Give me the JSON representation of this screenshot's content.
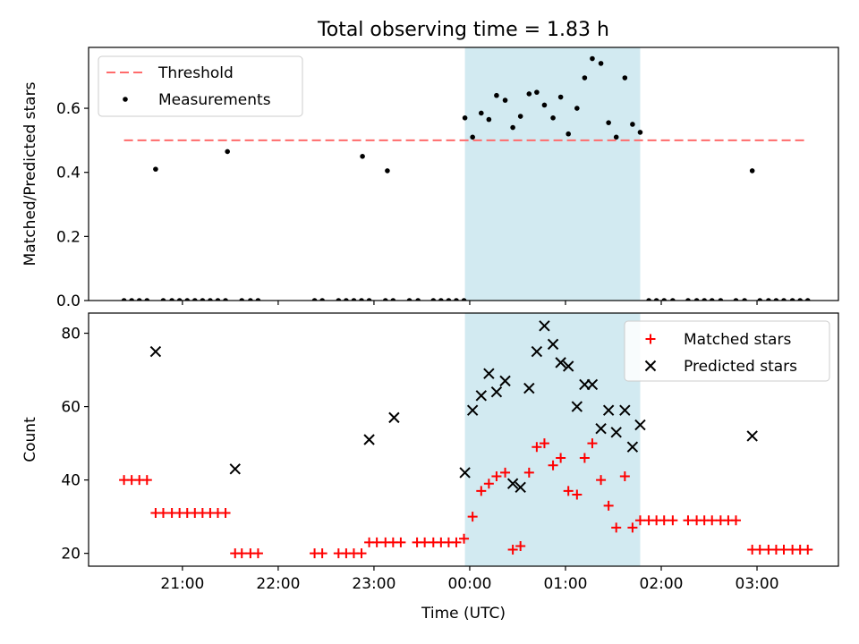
{
  "title": "Total observing time = 1.83 h",
  "colors": {
    "threshold": "#ff6b6b",
    "measure": "#000000",
    "matched": "#ff0000",
    "predicted": "#000000",
    "band": "#add8e6"
  },
  "chart_data": [
    {
      "type": "scatter",
      "panel": "top",
      "ylabel": "Matched/Predicted stars",
      "ylim": [
        0,
        0.79
      ],
      "yticks": [
        "0.0",
        "0.2",
        "0.4",
        "0.6"
      ],
      "yticks_values": [
        0,
        0.2,
        0.4,
        0.6
      ],
      "xlim_hours": [
        20.02,
        27.85
      ],
      "shaded_interval_hours": [
        23.95,
        25.78
      ],
      "legend": {
        "placement": "upper left",
        "entries": [
          "Threshold",
          "Measurements"
        ]
      },
      "threshold": {
        "name": "Threshold",
        "value": 0.5,
        "x_range_hours": [
          20.39,
          27.53
        ]
      },
      "series": [
        {
          "name": "Measurements",
          "points": [
            [
              20.39,
              0
            ],
            [
              20.47,
              0
            ],
            [
              20.55,
              0
            ],
            [
              20.63,
              0
            ],
            [
              20.72,
              0.41
            ],
            [
              20.8,
              0
            ],
            [
              20.89,
              0
            ],
            [
              20.97,
              0
            ],
            [
              21.05,
              0
            ],
            [
              21.13,
              0
            ],
            [
              21.21,
              0
            ],
            [
              21.29,
              0
            ],
            [
              21.37,
              0
            ],
            [
              21.45,
              0
            ],
            [
              21.47,
              0.465
            ],
            [
              21.62,
              0
            ],
            [
              21.71,
              0
            ],
            [
              21.79,
              0
            ],
            [
              22.38,
              0
            ],
            [
              22.46,
              0
            ],
            [
              22.63,
              0
            ],
            [
              22.71,
              0
            ],
            [
              22.79,
              0
            ],
            [
              22.87,
              0
            ],
            [
              22.95,
              0
            ],
            [
              22.88,
              0.45
            ],
            [
              23.12,
              0
            ],
            [
              23.2,
              0
            ],
            [
              23.14,
              0.405
            ],
            [
              23.37,
              0
            ],
            [
              23.46,
              0
            ],
            [
              23.62,
              0
            ],
            [
              23.7,
              0
            ],
            [
              23.78,
              0
            ],
            [
              23.86,
              0
            ],
            [
              23.94,
              0
            ],
            [
              23.95,
              0.57
            ],
            [
              24.03,
              0.51
            ],
            [
              24.12,
              0.585
            ],
            [
              24.2,
              0.565
            ],
            [
              24.28,
              0.64
            ],
            [
              24.37,
              0.625
            ],
            [
              24.45,
              0.54
            ],
            [
              24.53,
              0.575
            ],
            [
              24.62,
              0.645
            ],
            [
              24.7,
              0.65
            ],
            [
              24.78,
              0.61
            ],
            [
              24.87,
              0.57
            ],
            [
              24.95,
              0.635
            ],
            [
              25.03,
              0.52
            ],
            [
              25.12,
              0.6
            ],
            [
              25.2,
              0.695
            ],
            [
              25.28,
              0.755
            ],
            [
              25.37,
              0.74
            ],
            [
              25.45,
              0.555
            ],
            [
              25.53,
              0.51
            ],
            [
              25.62,
              0.695
            ],
            [
              25.7,
              0.55
            ],
            [
              25.78,
              0.525
            ],
            [
              25.87,
              0
            ],
            [
              25.95,
              0
            ],
            [
              26.03,
              0
            ],
            [
              26.12,
              0
            ],
            [
              26.28,
              0
            ],
            [
              26.37,
              0
            ],
            [
              26.45,
              0
            ],
            [
              26.53,
              0
            ],
            [
              26.62,
              0
            ],
            [
              26.78,
              0
            ],
            [
              26.87,
              0
            ],
            [
              27.03,
              0
            ],
            [
              26.95,
              0.405
            ],
            [
              27.12,
              0
            ],
            [
              27.2,
              0
            ],
            [
              27.28,
              0
            ],
            [
              27.37,
              0
            ],
            [
              27.45,
              0
            ],
            [
              27.53,
              0
            ]
          ]
        }
      ]
    },
    {
      "type": "scatter",
      "panel": "bottom",
      "xlabel": "Time (UTC)",
      "ylabel": "Count",
      "ylim": [
        16.5,
        85.5
      ],
      "yticks": [
        "20",
        "40",
        "60",
        "80"
      ],
      "yticks_values": [
        20,
        40,
        60,
        80
      ],
      "xlim_hours": [
        20.02,
        27.85
      ],
      "xticks": [
        "21:00",
        "22:00",
        "23:00",
        "00:00",
        "01:00",
        "02:00",
        "03:00"
      ],
      "xticks_hours": [
        21,
        22,
        23,
        24,
        25,
        26,
        27
      ],
      "shaded_interval_hours": [
        23.95,
        25.78
      ],
      "legend": {
        "placement": "upper right",
        "entries": [
          "Matched stars",
          "Predicted stars"
        ]
      },
      "series": [
        {
          "name": "Matched stars",
          "marker": "plus",
          "points": [
            [
              20.39,
              40
            ],
            [
              20.47,
              40
            ],
            [
              20.55,
              40
            ],
            [
              20.63,
              40
            ],
            [
              20.72,
              31
            ],
            [
              20.8,
              31
            ],
            [
              20.89,
              31
            ],
            [
              20.97,
              31
            ],
            [
              21.05,
              31
            ],
            [
              21.13,
              31
            ],
            [
              21.21,
              31
            ],
            [
              21.29,
              31
            ],
            [
              21.37,
              31
            ],
            [
              21.45,
              31
            ],
            [
              21.55,
              20
            ],
            [
              21.62,
              20
            ],
            [
              21.71,
              20
            ],
            [
              21.79,
              20
            ],
            [
              22.38,
              20
            ],
            [
              22.46,
              20
            ],
            [
              22.63,
              20
            ],
            [
              22.71,
              20
            ],
            [
              22.79,
              20
            ],
            [
              22.87,
              20
            ],
            [
              22.95,
              23
            ],
            [
              23.03,
              23
            ],
            [
              23.12,
              23
            ],
            [
              23.2,
              23
            ],
            [
              23.28,
              23
            ],
            [
              23.45,
              23
            ],
            [
              23.53,
              23
            ],
            [
              23.62,
              23
            ],
            [
              23.7,
              23
            ],
            [
              23.78,
              23
            ],
            [
              23.86,
              23
            ],
            [
              23.94,
              24
            ],
            [
              24.03,
              30
            ],
            [
              24.12,
              37
            ],
            [
              24.2,
              39
            ],
            [
              24.28,
              41
            ],
            [
              24.37,
              42
            ],
            [
              24.45,
              21
            ],
            [
              24.53,
              22
            ],
            [
              24.62,
              42
            ],
            [
              24.7,
              49
            ],
            [
              24.78,
              50
            ],
            [
              24.87,
              44
            ],
            [
              24.95,
              46
            ],
            [
              25.03,
              37
            ],
            [
              25.12,
              36
            ],
            [
              25.2,
              46
            ],
            [
              25.28,
              50
            ],
            [
              25.37,
              40
            ],
            [
              25.45,
              33
            ],
            [
              25.53,
              27
            ],
            [
              25.62,
              41
            ],
            [
              25.7,
              27
            ],
            [
              25.78,
              29
            ],
            [
              25.87,
              29
            ],
            [
              25.95,
              29
            ],
            [
              26.03,
              29
            ],
            [
              26.12,
              29
            ],
            [
              26.28,
              29
            ],
            [
              26.37,
              29
            ],
            [
              26.45,
              29
            ],
            [
              26.53,
              29
            ],
            [
              26.62,
              29
            ],
            [
              26.7,
              29
            ],
            [
              26.78,
              29
            ],
            [
              26.95,
              21
            ],
            [
              27.03,
              21
            ],
            [
              27.12,
              21
            ],
            [
              27.2,
              21
            ],
            [
              27.28,
              21
            ],
            [
              27.37,
              21
            ],
            [
              27.45,
              21
            ],
            [
              27.53,
              21
            ]
          ]
        },
        {
          "name": "Predicted stars",
          "marker": "x",
          "points": [
            [
              20.72,
              75
            ],
            [
              21.55,
              43
            ],
            [
              22.95,
              51
            ],
            [
              23.21,
              57
            ],
            [
              23.95,
              42
            ],
            [
              24.03,
              59
            ],
            [
              24.12,
              63
            ],
            [
              24.2,
              69
            ],
            [
              24.28,
              64
            ],
            [
              24.37,
              67
            ],
            [
              24.45,
              39
            ],
            [
              24.53,
              38
            ],
            [
              24.62,
              65
            ],
            [
              24.7,
              75
            ],
            [
              24.78,
              82
            ],
            [
              24.87,
              77
            ],
            [
              24.95,
              72
            ],
            [
              25.03,
              71
            ],
            [
              25.12,
              60
            ],
            [
              25.2,
              66
            ],
            [
              25.28,
              66
            ],
            [
              25.37,
              54
            ],
            [
              25.45,
              59
            ],
            [
              25.53,
              53
            ],
            [
              25.62,
              59
            ],
            [
              25.7,
              49
            ],
            [
              25.78,
              55
            ],
            [
              26.95,
              52
            ]
          ]
        }
      ]
    }
  ]
}
